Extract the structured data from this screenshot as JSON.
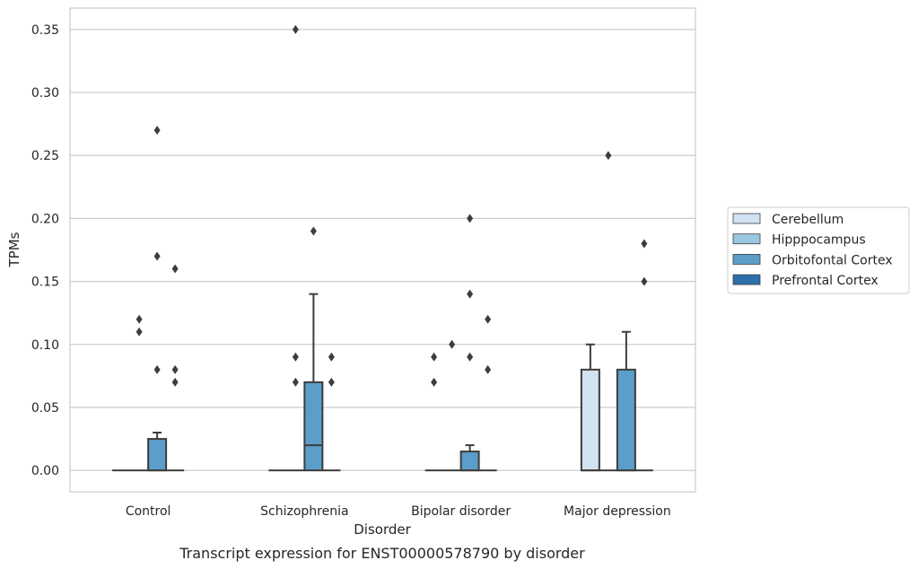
{
  "chart_data": {
    "type": "box",
    "xlabel": "Disorder",
    "ylabel": "TPMs",
    "caption": "Transcript expression for ENST00000578790 by disorder",
    "ylim": [
      -0.017,
      0.367
    ],
    "yticks": [
      "0.00",
      "0.05",
      "0.10",
      "0.15",
      "0.20",
      "0.25",
      "0.30",
      "0.35"
    ],
    "grid": "horizontal",
    "legend_position": "right",
    "categories": [
      "Control",
      "Schizophrenia",
      "Bipolar disorder",
      "Major depression"
    ],
    "series": [
      {
        "name": "Cerebellum",
        "color": "#d1e2f2"
      },
      {
        "name": "Hipppocampus",
        "color": "#9ac8e0"
      },
      {
        "name": "Orbitofontal Cortex",
        "color": "#5a9ec9"
      },
      {
        "name": "Prefrontal Cortex",
        "color": "#2d6fab"
      }
    ],
    "boxes": [
      {
        "category": "Control",
        "series": "Cerebellum",
        "q1": 0,
        "median": 0,
        "q3": 0,
        "whisker_low": 0,
        "whisker_high": 0,
        "outliers": []
      },
      {
        "category": "Control",
        "series": "Hipppocampus",
        "q1": 0,
        "median": 0,
        "q3": 0,
        "whisker_low": 0,
        "whisker_high": 0,
        "outliers": [
          0.11,
          0.12
        ]
      },
      {
        "category": "Control",
        "series": "Orbitofontal Cortex",
        "q1": 0,
        "median": 0,
        "q3": 0.025,
        "whisker_low": 0,
        "whisker_high": 0.03,
        "outliers": [
          0.08,
          0.17,
          0.27
        ]
      },
      {
        "category": "Control",
        "series": "Prefrontal Cortex",
        "q1": 0,
        "median": 0,
        "q3": 0,
        "whisker_low": 0,
        "whisker_high": 0,
        "outliers": [
          0.07,
          0.08,
          0.16
        ]
      },
      {
        "category": "Schizophrenia",
        "series": "Cerebellum",
        "q1": 0,
        "median": 0,
        "q3": 0,
        "whisker_low": 0,
        "whisker_high": 0,
        "outliers": []
      },
      {
        "category": "Schizophrenia",
        "series": "Hipppocampus",
        "q1": 0,
        "median": 0,
        "q3": 0,
        "whisker_low": 0,
        "whisker_high": 0,
        "outliers": [
          0.07,
          0.09,
          0.35
        ]
      },
      {
        "category": "Schizophrenia",
        "series": "Orbitofontal Cortex",
        "q1": 0,
        "median": 0.02,
        "q3": 0.07,
        "whisker_low": 0,
        "whisker_high": 0.14,
        "outliers": [
          0.19
        ]
      },
      {
        "category": "Schizophrenia",
        "series": "Prefrontal Cortex",
        "q1": 0,
        "median": 0,
        "q3": 0,
        "whisker_low": 0,
        "whisker_high": 0,
        "outliers": [
          0.07,
          0.09
        ]
      },
      {
        "category": "Bipolar disorder",
        "series": "Cerebellum",
        "q1": 0,
        "median": 0,
        "q3": 0,
        "whisker_low": 0,
        "whisker_high": 0,
        "outliers": [
          0.07,
          0.09
        ]
      },
      {
        "category": "Bipolar disorder",
        "series": "Hipppocampus",
        "q1": 0,
        "median": 0,
        "q3": 0,
        "whisker_low": 0,
        "whisker_high": 0,
        "outliers": [
          0.1
        ]
      },
      {
        "category": "Bipolar disorder",
        "series": "Orbitofontal Cortex",
        "q1": 0,
        "median": 0,
        "q3": 0.015,
        "whisker_low": 0,
        "whisker_high": 0.02,
        "outliers": [
          0.09,
          0.14,
          0.2
        ]
      },
      {
        "category": "Bipolar disorder",
        "series": "Prefrontal Cortex",
        "q1": 0,
        "median": 0,
        "q3": 0,
        "whisker_low": 0,
        "whisker_high": 0,
        "outliers": [
          0.08,
          0.12
        ]
      },
      {
        "category": "Major depression",
        "series": "Cerebellum",
        "q1": 0,
        "median": 0,
        "q3": 0.08,
        "whisker_low": 0,
        "whisker_high": 0.1,
        "outliers": []
      },
      {
        "category": "Major depression",
        "series": "Hipppocampus",
        "q1": 0,
        "median": 0,
        "q3": 0,
        "whisker_low": 0,
        "whisker_high": 0,
        "outliers": [
          0.25
        ]
      },
      {
        "category": "Major depression",
        "series": "Orbitofontal Cortex",
        "q1": 0,
        "median": 0,
        "q3": 0.08,
        "whisker_low": 0,
        "whisker_high": 0.11,
        "outliers": []
      },
      {
        "category": "Major depression",
        "series": "Prefrontal Cortex",
        "q1": 0,
        "median": 0,
        "q3": 0,
        "whisker_low": 0,
        "whisker_high": 0,
        "outliers": [
          0.15,
          0.18
        ]
      }
    ]
  }
}
